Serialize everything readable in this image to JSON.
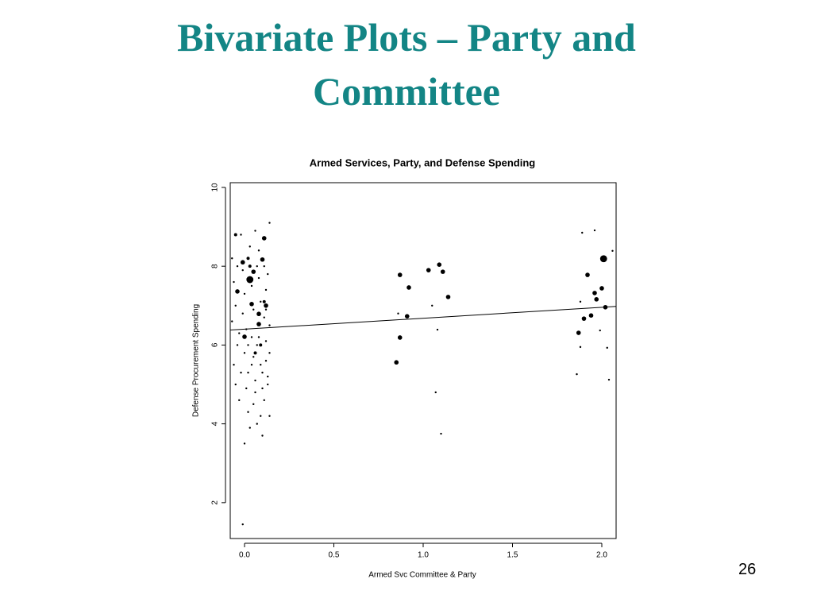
{
  "slide": {
    "title_line1": "Bivariate Plots – Party and",
    "title_line2": "Committee",
    "page_number": "26"
  },
  "chart_data": {
    "type": "scatter",
    "title": "Armed Services, Party, and Defense Spending",
    "x_label": "Armed Svc Committee & Party",
    "y_label": "Defense Procurement Spending",
    "xlim": [
      -0.08,
      2.08
    ],
    "ylim": [
      1.09,
      10.12
    ],
    "xticks": [
      {
        "value": 0,
        "label": "0.0"
      },
      0.5,
      {
        "value": 1,
        "label": "1.0"
      },
      1.5,
      {
        "value": 2,
        "label": "2.0"
      }
    ],
    "yticks": [
      2,
      4,
      6,
      8,
      10
    ],
    "color": "#000000",
    "series": [
      {
        "x": [
          0.03,
          0.08,
          0.1,
          0.0,
          0.12,
          -0.04,
          0.04,
          0.08,
          0.05,
          -0.01,
          0.11,
          0.87,
          0.92,
          1.09,
          1.11,
          1.03,
          1.14,
          0.91,
          0.87,
          0.85,
          1.08,
          1.07,
          1.1,
          0.86,
          1.05,
          2.01,
          2.0,
          1.92,
          1.96,
          1.97,
          1.94,
          1.9,
          2.02,
          1.87,
          1.89,
          1.96,
          2.06,
          1.86,
          2.04,
          1.88,
          2.03,
          1.88,
          1.99,
          -0.07,
          -0.06,
          -0.05,
          -0.07,
          -0.04,
          -0.06,
          -0.05,
          -0.03,
          -0.02,
          -0.01,
          0.0,
          -0.01,
          0.01,
          0.0,
          0.02,
          0.01,
          0.02,
          0.03,
          0.0,
          -0.01,
          0.03,
          0.04,
          0.05,
          0.04,
          0.05,
          0.06,
          0.05,
          0.07,
          0.06,
          0.08,
          0.08,
          0.09,
          0.07,
          0.09,
          0.1,
          0.09,
          0.1,
          0.11,
          0.12,
          0.11,
          0.12,
          0.12,
          0.13,
          0.14,
          0.14,
          0.13,
          0.14,
          0.14,
          0.13,
          0.02,
          0.04,
          0.08,
          0.1,
          0.06,
          -0.03,
          -0.02,
          0.11,
          0.12,
          0.07,
          -0.04,
          -0.05,
          0.03,
          0.09,
          0.06,
          0.11,
          0.02
        ],
        "values": [
          7.66,
          6.53,
          8.17,
          6.21,
          7.0,
          7.36,
          7.04,
          6.79,
          7.86,
          8.1,
          8.71,
          7.78,
          7.46,
          8.04,
          7.86,
          7.9,
          7.22,
          6.73,
          6.19,
          5.56,
          6.39,
          4.8,
          3.75,
          6.8,
          7.0,
          8.19,
          7.44,
          7.78,
          7.32,
          7.16,
          6.75,
          6.67,
          6.96,
          6.31,
          8.85,
          8.91,
          8.39,
          5.26,
          5.12,
          5.95,
          5.93,
          7.1,
          6.37,
          8.2,
          7.6,
          7.0,
          6.6,
          6.0,
          5.5,
          5.0,
          4.6,
          8.8,
          7.9,
          7.3,
          6.8,
          6.4,
          5.8,
          5.3,
          4.9,
          4.3,
          3.9,
          3.5,
          1.45,
          8.5,
          7.5,
          6.9,
          6.2,
          5.7,
          5.1,
          4.5,
          4.0,
          8.9,
          8.4,
          7.7,
          7.1,
          6.0,
          5.5,
          4.9,
          4.2,
          3.7,
          8.0,
          7.4,
          6.7,
          6.1,
          5.6,
          5.0,
          4.2,
          9.1,
          7.8,
          6.5,
          5.8,
          5.2,
          6.0,
          5.5,
          6.2,
          5.3,
          4.8,
          6.3,
          5.3,
          4.6,
          6.9,
          8.0,
          8.0,
          8.8,
          8.0,
          6.0,
          5.8,
          7.1,
          8.2
        ],
        "sizes": [
          3,
          2,
          2,
          2,
          2,
          2,
          2,
          2,
          2,
          2,
          2,
          2,
          2,
          2,
          2,
          2,
          2,
          2,
          2,
          2,
          1,
          1,
          1,
          1,
          1,
          3,
          2,
          2,
          2,
          2,
          2,
          2,
          2,
          2,
          1,
          1,
          1,
          1,
          1,
          1,
          1,
          1,
          1,
          1,
          1,
          1,
          1,
          1,
          1,
          1,
          1,
          1,
          1,
          1,
          1,
          1,
          1,
          1,
          1,
          1,
          1,
          1,
          1,
          1,
          1,
          1,
          1,
          1,
          1,
          1,
          1,
          1,
          1,
          1,
          1,
          1,
          1,
          1,
          1,
          1,
          1,
          1,
          1,
          1,
          1,
          1,
          1,
          1,
          1,
          1,
          1,
          1,
          1,
          1,
          1,
          1,
          1,
          1,
          1,
          1,
          1,
          1,
          1,
          1.5,
          1.5,
          1.5,
          1.5,
          1.5,
          1.5
        ]
      }
    ],
    "fit_line": {
      "x": [
        -0.08,
        2.08
      ],
      "y": [
        6.38,
        6.98
      ]
    }
  }
}
